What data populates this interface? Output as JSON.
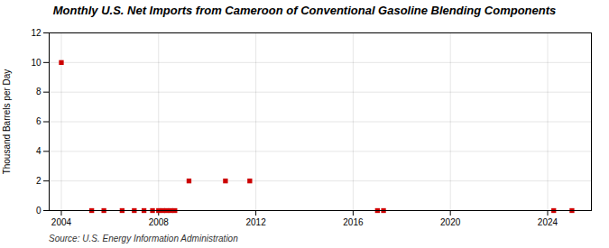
{
  "chart_data": {
    "type": "scatter",
    "title": "Monthly U.S. Net Imports from Cameroon of Conventional Gasoline Blending Components",
    "ylabel": "Thousand Barrels per Day",
    "annotation": "Source: U.S. Energy Information Administration",
    "x": [
      2004.0,
      2005.25,
      2005.75,
      2006.5,
      2007.0,
      2007.4,
      2007.75,
      2008.0,
      2008.17,
      2008.33,
      2008.5,
      2008.67,
      2009.25,
      2010.75,
      2011.75,
      2017.0,
      2017.25,
      2024.25,
      2025.0
    ],
    "values": [
      10.0,
      0.0,
      0.0,
      0.0,
      0.0,
      0.0,
      0.0,
      0.0,
      0.0,
      0.0,
      0.0,
      0.0,
      2.0,
      2.0,
      2.0,
      0.0,
      0.0,
      0.0,
      0.0
    ],
    "xlim": [
      2003.5,
      2025.8
    ],
    "xticks": [
      2004,
      2008,
      2012,
      2016,
      2020,
      2024
    ],
    "ylim": [
      0,
      12
    ],
    "yticks": [
      0,
      2,
      4,
      6,
      8,
      10,
      12
    ],
    "grid": true,
    "color": "#cc0000",
    "marker": "square"
  }
}
